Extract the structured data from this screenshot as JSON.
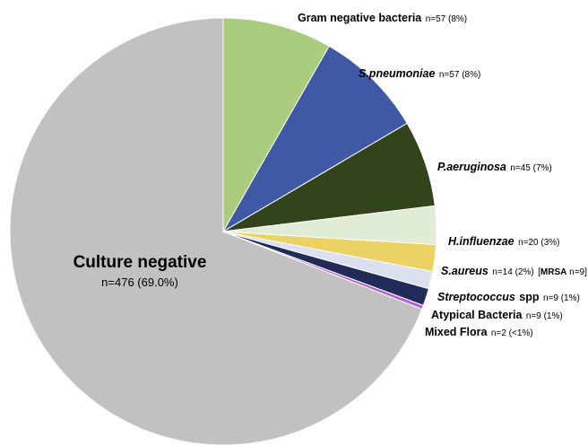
{
  "chart_data": {
    "type": "pie",
    "slices": [
      {
        "name": "Culture negative",
        "count": "n=476 (69.0%)",
        "value": 476,
        "color": "#c2c0c1"
      },
      {
        "name": "Gram negative bacteria",
        "count": "n=57 (8%)",
        "value": 57,
        "color": "#a9cc7e"
      },
      {
        "name": "S.pneumoniae",
        "count": "n=57 (8%)",
        "value": 57,
        "color": "#3f59a5"
      },
      {
        "name": "P.aeruginosa",
        "count": "n=45 (7%)",
        "value": 45,
        "color": "#33441d"
      },
      {
        "name": "H.influenzae",
        "count": "n=20 (3%)",
        "value": 20,
        "color": "#e1ecd6"
      },
      {
        "name": "S.aureus",
        "count": "n=14 (2%)",
        "value": 14,
        "color": "#ecd164",
        "extra_label": "MRSA",
        "extra_count": "n=9"
      },
      {
        "name": "Streptococcus",
        "name_suffix": "spp",
        "count": "n=9 (1%)",
        "value": 9,
        "color": "#dbe0ee"
      },
      {
        "name": "Atypical Bacteria",
        "count": "n=9 (1%)",
        "value": 9,
        "color": "#212b5a"
      },
      {
        "name": "Mixed Flora",
        "count": "n=2 (<1%)",
        "value": 2,
        "color": "#b460e0"
      }
    ]
  }
}
